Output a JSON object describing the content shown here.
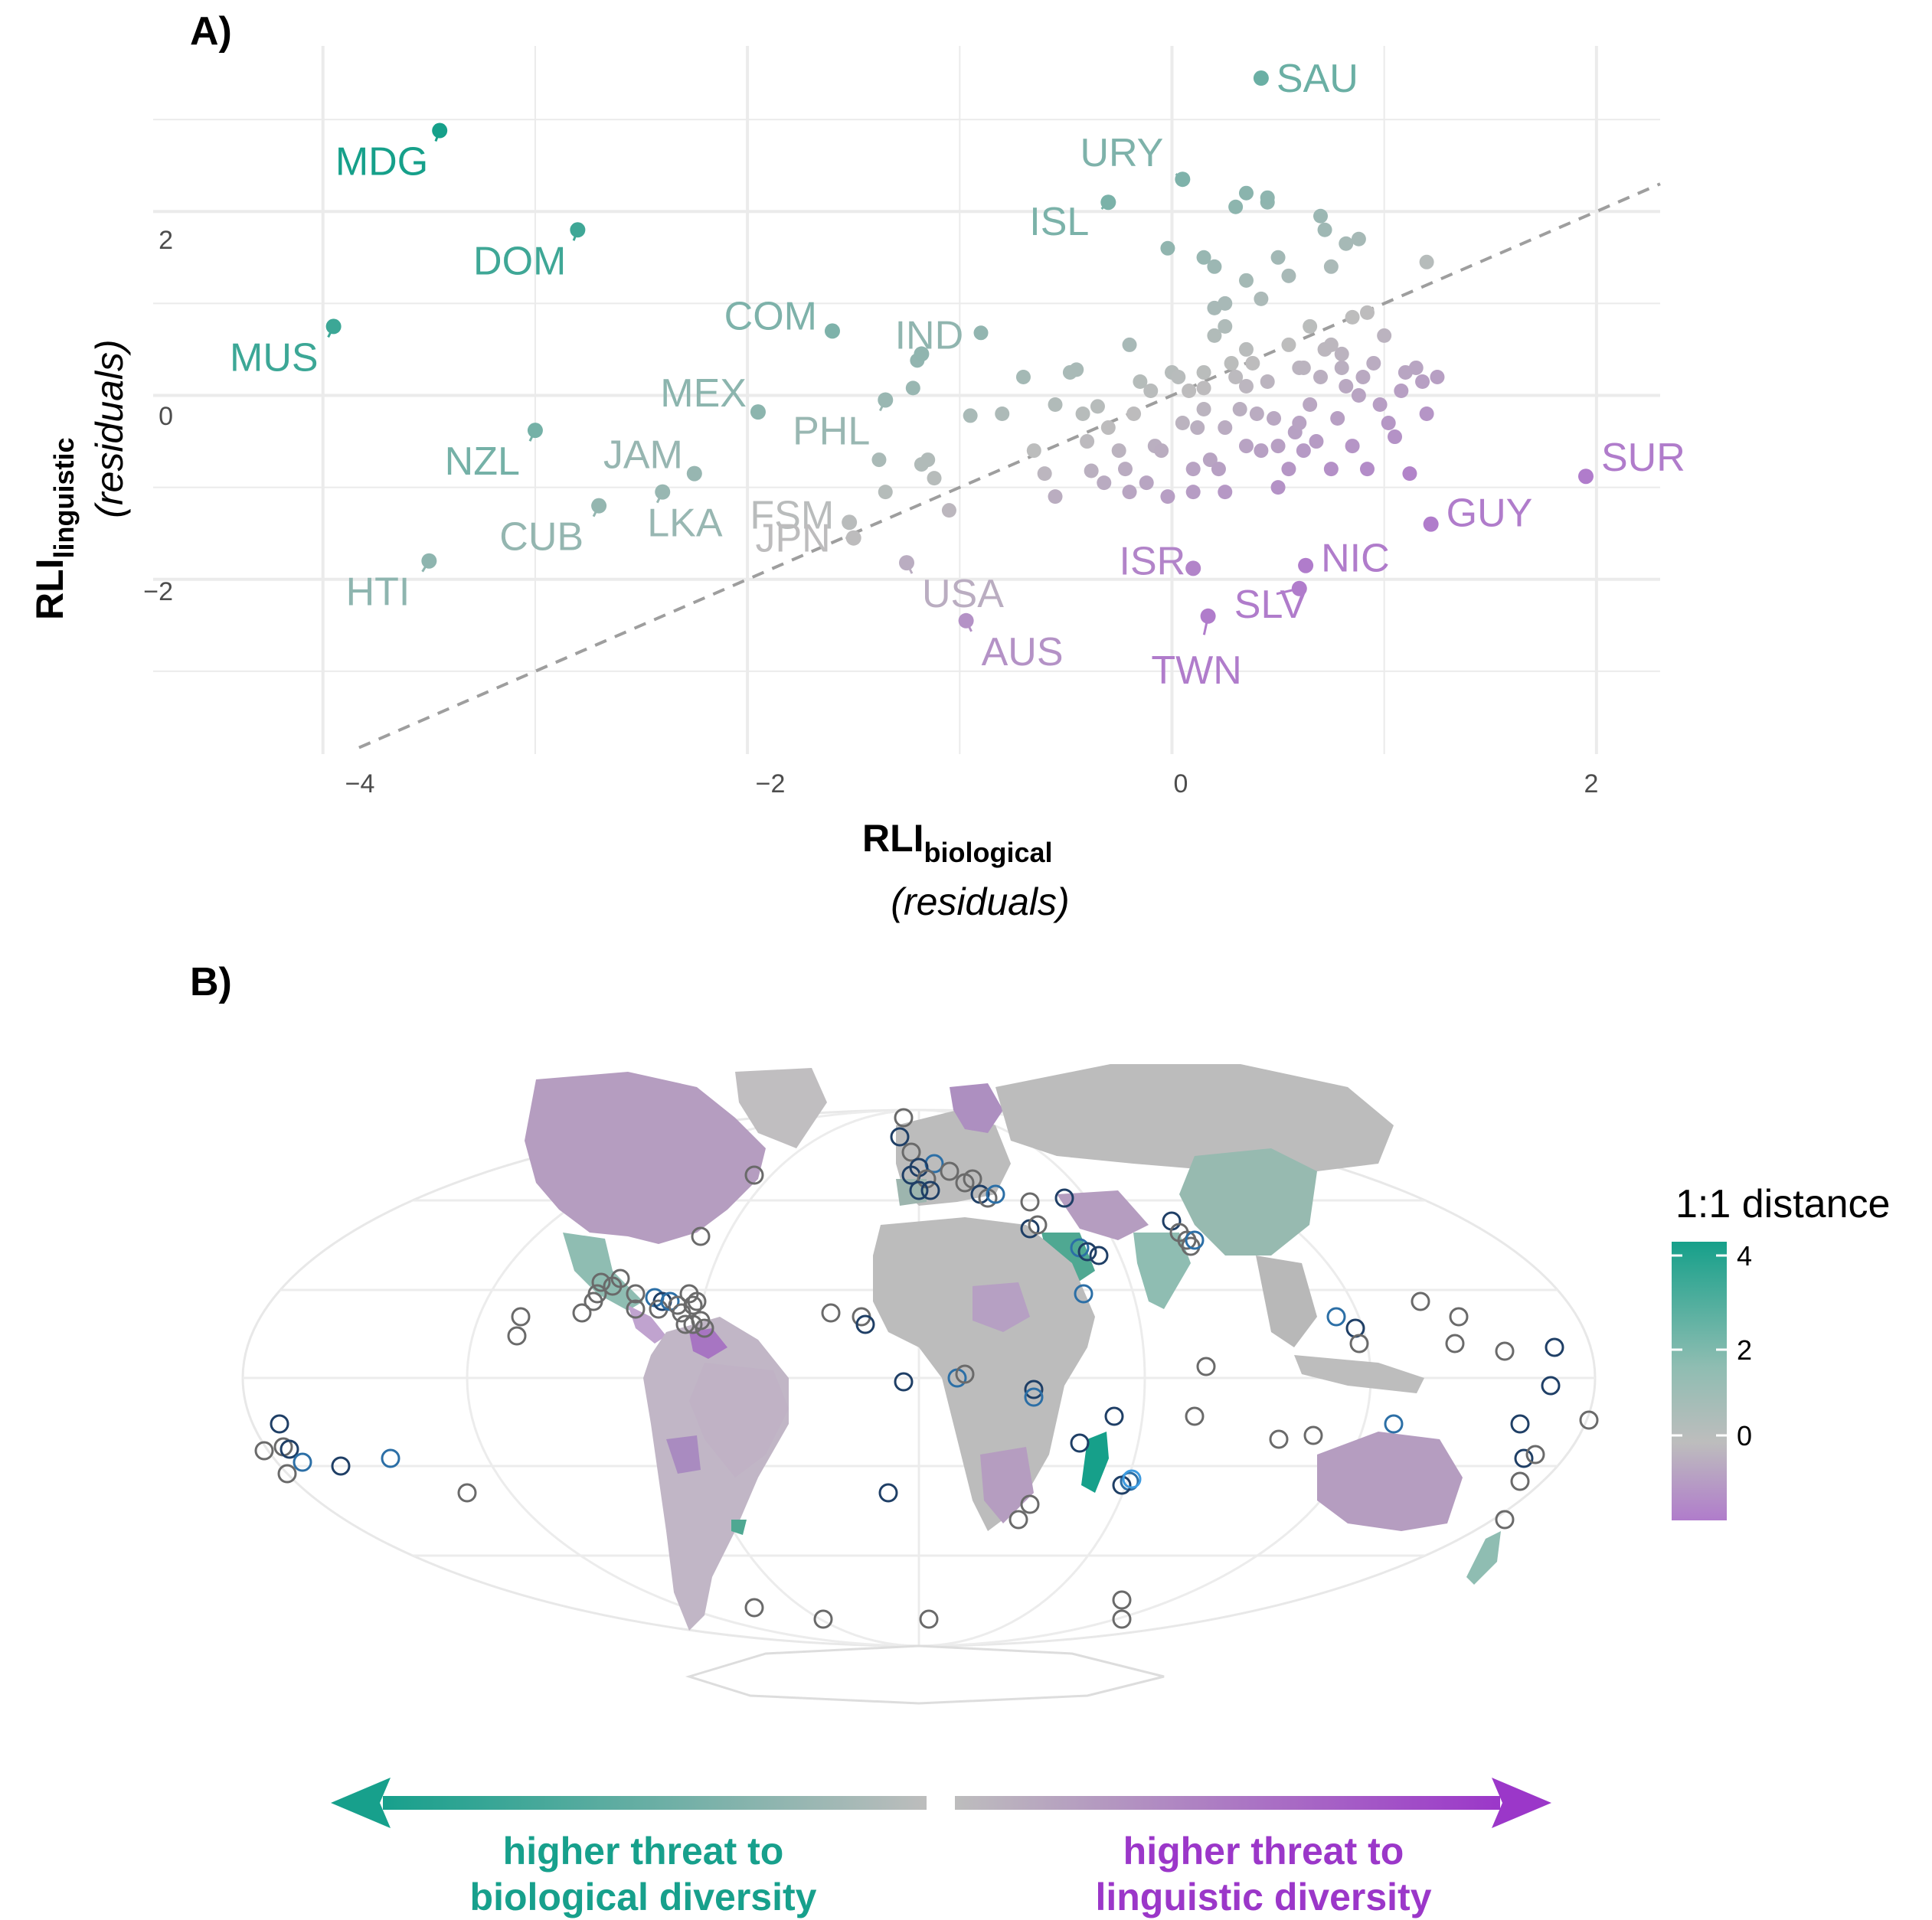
{
  "panel_a": {
    "tag": "A)",
    "x_axis": {
      "main": "RLI",
      "sub": "biological",
      "second_line": "(residuals)"
    },
    "y_axis": {
      "main": "RLI",
      "sub": "linguistic",
      "second_line": "(residuals)"
    },
    "x_ticks": [
      "−4",
      "−2",
      "0",
      "2"
    ],
    "y_ticks": [
      "2",
      "0",
      "−2"
    ]
  },
  "panel_b": {
    "tag": "B)",
    "legend": {
      "title": "1:1 distance",
      "ticks": [
        "4",
        "2",
        "0"
      ]
    },
    "colors": {
      "teal": "#16a08a",
      "grey": "#bdbdbd",
      "purple": "#b07ccb"
    },
    "arrow_left_text": [
      "higher threat to",
      "biological diversity"
    ],
    "arrow_right_text": [
      "higher threat to",
      "linguistic diversity"
    ],
    "arrow_left_color": "#17a08c",
    "arrow_right_color": "#9b37c9"
  },
  "chart_data": [
    {
      "type": "scatter",
      "xlabel": "RLI biological (residuals)",
      "ylabel": "RLI linguistic (residuals)",
      "xlim": [
        -4.8,
        2.3
      ],
      "ylim": [
        -3.9,
        3.8
      ],
      "x_ticks": [
        -4,
        -2,
        0,
        2
      ],
      "y_ticks": [
        -2,
        0,
        2
      ],
      "grid": true,
      "reference_line": {
        "style": "dashed",
        "slope": 1,
        "intercept": 0
      },
      "labeled_points": [
        {
          "label": "SAU",
          "x": 0.42,
          "y": 3.45
        },
        {
          "label": "URY",
          "x": 0.05,
          "y": 2.35
        },
        {
          "label": "ISL",
          "x": -0.3,
          "y": 2.1
        },
        {
          "label": "MDG",
          "x": -3.45,
          "y": 2.88
        },
        {
          "label": "DOM",
          "x": -2.8,
          "y": 1.8
        },
        {
          "label": "MUS",
          "x": -3.95,
          "y": 0.75
        },
        {
          "label": "COM",
          "x": -1.6,
          "y": 0.7
        },
        {
          "label": "IND",
          "x": -1.18,
          "y": 0.45
        },
        {
          "label": "MEX",
          "x": -1.95,
          "y": -0.18
        },
        {
          "label": "PHL",
          "x": -1.35,
          "y": -0.05
        },
        {
          "label": "NZL",
          "x": -3.0,
          "y": -0.38
        },
        {
          "label": "JAM",
          "x": -2.25,
          "y": -0.85
        },
        {
          "label": "LKA",
          "x": -2.4,
          "y": -1.05
        },
        {
          "label": "CUB",
          "x": -2.7,
          "y": -1.2
        },
        {
          "label": "FSM",
          "x": -1.52,
          "y": -1.38
        },
        {
          "label": "HTI",
          "x": -3.5,
          "y": -1.8
        },
        {
          "label": "JPN",
          "x": -1.5,
          "y": -1.55
        },
        {
          "label": "USA",
          "x": -1.25,
          "y": -1.82
        },
        {
          "label": "AUS",
          "x": -0.97,
          "y": -2.45
        },
        {
          "label": "ISR",
          "x": 0.1,
          "y": -1.88
        },
        {
          "label": "SLV",
          "x": 0.6,
          "y": -2.1
        },
        {
          "label": "TWN",
          "x": 0.17,
          "y": -2.4
        },
        {
          "label": "NIC",
          "x": 0.63,
          "y": -1.85
        },
        {
          "label": "GUY",
          "x": 1.22,
          "y": -1.4
        },
        {
          "label": "SUR",
          "x": 1.95,
          "y": -0.88
        }
      ],
      "points": [
        [
          -0.9,
          0.68
        ],
        [
          -1.2,
          0.38
        ],
        [
          -1.22,
          0.08
        ],
        [
          -1.15,
          -0.7
        ],
        [
          -1.18,
          -0.75
        ],
        [
          -1.12,
          -0.9
        ],
        [
          -1.05,
          -1.25
        ],
        [
          -1.38,
          -0.7
        ],
        [
          -1.35,
          -1.05
        ],
        [
          -0.95,
          -0.22
        ],
        [
          -0.8,
          -0.2
        ],
        [
          -0.7,
          0.2
        ],
        [
          -0.65,
          -0.6
        ],
        [
          -0.6,
          -0.85
        ],
        [
          -0.55,
          -0.1
        ],
        [
          -0.55,
          -1.1
        ],
        [
          -0.48,
          0.25
        ],
        [
          -0.45,
          0.28
        ],
        [
          -0.42,
          -0.2
        ],
        [
          -0.4,
          -0.5
        ],
        [
          -0.38,
          -0.82
        ],
        [
          -0.35,
          -0.12
        ],
        [
          -0.32,
          -0.95
        ],
        [
          -0.3,
          -0.35
        ],
        [
          -0.25,
          -0.6
        ],
        [
          -0.22,
          -0.8
        ],
        [
          -0.2,
          -1.05
        ],
        [
          -0.2,
          0.55
        ],
        [
          -0.18,
          -0.2
        ],
        [
          -0.15,
          0.15
        ],
        [
          -0.12,
          -0.95
        ],
        [
          -0.1,
          0.05
        ],
        [
          -0.08,
          -0.55
        ],
        [
          -0.05,
          -0.6
        ],
        [
          -0.02,
          -1.1
        ],
        [
          0.0,
          0.25
        ],
        [
          0.03,
          0.2
        ],
        [
          0.05,
          -0.3
        ],
        [
          0.08,
          0.05
        ],
        [
          0.1,
          -0.8
        ],
        [
          0.1,
          -1.05
        ],
        [
          0.12,
          -0.35
        ],
        [
          0.15,
          0.08
        ],
        [
          0.15,
          -0.15
        ],
        [
          0.18,
          -0.7
        ],
        [
          0.2,
          0.95
        ],
        [
          0.2,
          0.65
        ],
        [
          0.22,
          -0.8
        ],
        [
          0.25,
          -0.35
        ],
        [
          0.25,
          -1.05
        ],
        [
          0.28,
          0.35
        ],
        [
          0.3,
          0.2
        ],
        [
          0.32,
          -0.15
        ],
        [
          0.35,
          -0.55
        ],
        [
          0.38,
          0.35
        ],
        [
          0.4,
          -0.2
        ],
        [
          0.42,
          -0.6
        ],
        [
          0.45,
          0.15
        ],
        [
          0.48,
          -0.25
        ],
        [
          0.5,
          -1.0
        ],
        [
          0.5,
          -0.55
        ],
        [
          0.55,
          -0.8
        ],
        [
          0.58,
          -0.4
        ],
        [
          0.6,
          -0.3
        ],
        [
          0.62,
          -0.6
        ],
        [
          0.65,
          -0.1
        ],
        [
          0.68,
          -0.5
        ],
        [
          0.7,
          0.2
        ],
        [
          0.72,
          0.5
        ],
        [
          0.75,
          -0.8
        ],
        [
          0.78,
          -0.25
        ],
        [
          0.8,
          0.45
        ],
        [
          0.82,
          0.1
        ],
        [
          0.85,
          -0.55
        ],
        [
          0.88,
          0.0
        ],
        [
          0.9,
          0.2
        ],
        [
          0.92,
          -0.8
        ],
        [
          0.95,
          0.35
        ],
        [
          0.98,
          -0.1
        ],
        [
          1.0,
          0.65
        ],
        [
          1.02,
          -0.3
        ],
        [
          1.05,
          -0.45
        ],
        [
          1.08,
          0.05
        ],
        [
          1.1,
          0.25
        ],
        [
          1.12,
          -0.85
        ],
        [
          1.15,
          0.3
        ],
        [
          1.18,
          0.15
        ],
        [
          1.25,
          0.2
        ],
        [
          1.2,
          -0.2
        ],
        [
          0.6,
          0.3
        ],
        [
          0.25,
          1.0
        ],
        [
          0.15,
          0.25
        ],
        [
          0.35,
          0.5
        ],
        [
          0.55,
          0.55
        ],
        [
          0.65,
          0.75
        ],
        [
          0.75,
          0.55
        ],
        [
          0.85,
          0.85
        ],
        [
          0.92,
          0.9
        ],
        [
          0.8,
          0.3
        ],
        [
          0.15,
          1.5
        ],
        [
          0.2,
          1.4
        ],
        [
          0.3,
          2.05
        ],
        [
          0.35,
          2.2
        ],
        [
          0.45,
          2.1
        ],
        [
          0.45,
          2.15
        ],
        [
          0.5,
          1.5
        ],
        [
          0.55,
          1.3
        ],
        [
          0.7,
          1.95
        ],
        [
          0.75,
          1.4
        ],
        [
          0.82,
          1.65
        ],
        [
          0.88,
          1.7
        ],
        [
          1.2,
          1.45
        ],
        [
          -0.02,
          1.6
        ],
        [
          0.42,
          1.05
        ],
        [
          0.35,
          1.25
        ],
        [
          0.72,
          1.8
        ],
        [
          0.25,
          0.75
        ],
        [
          0.35,
          0.1
        ],
        [
          0.62,
          0.3
        ]
      ]
    },
    {
      "type": "map",
      "title": "1:1 distance",
      "colorbar_range": [
        -1.6,
        4.3
      ],
      "colorbar_ticks": [
        4,
        2,
        0
      ]
    }
  ]
}
